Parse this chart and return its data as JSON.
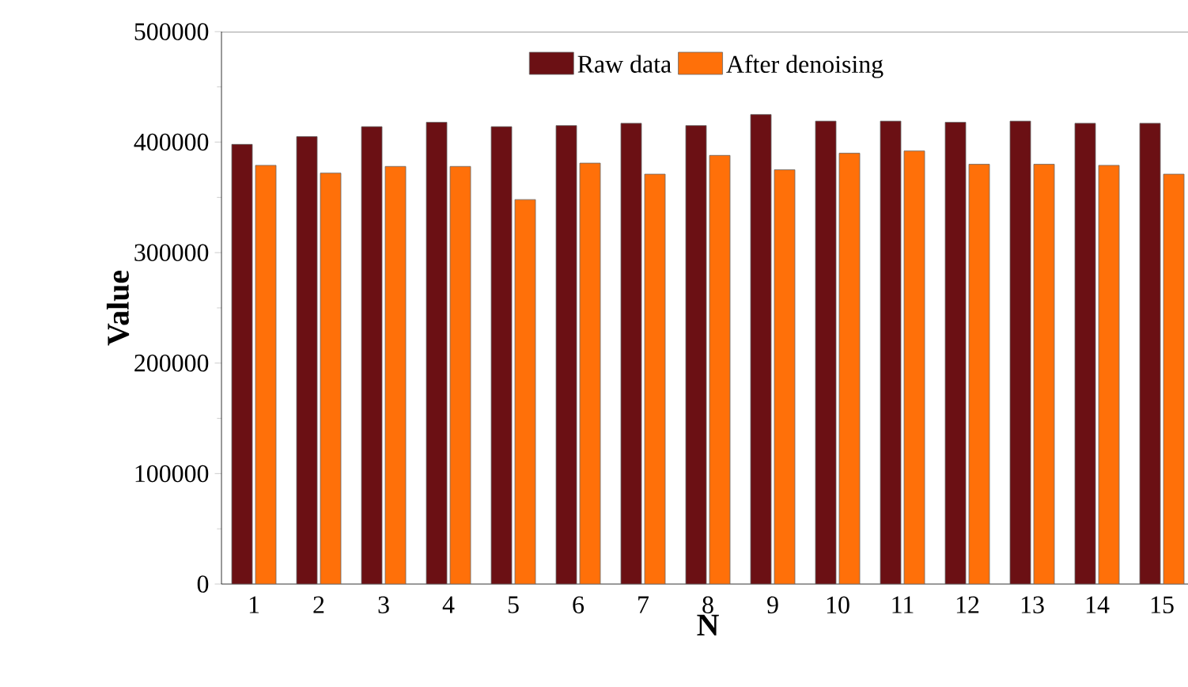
{
  "chart_data": {
    "type": "bar",
    "xlabel": "N",
    "ylabel": "Value",
    "categories": [
      "1",
      "2",
      "3",
      "4",
      "5",
      "6",
      "7",
      "8",
      "9",
      "10",
      "11",
      "12",
      "13",
      "14",
      "15"
    ],
    "series": [
      {
        "name": "Raw data",
        "color": "#6b1014",
        "values": [
          398000,
          405000,
          414000,
          418000,
          414000,
          415000,
          417000,
          415000,
          425000,
          419000,
          419000,
          418000,
          419000,
          417000,
          417000
        ]
      },
      {
        "name": "After denoising",
        "color": "#ff7009",
        "values": [
          379000,
          372000,
          378000,
          378000,
          348000,
          381000,
          371000,
          388000,
          375000,
          390000,
          392000,
          380000,
          380000,
          379000,
          371000
        ]
      }
    ],
    "ylim": [
      0,
      500000
    ],
    "yticks": [
      0,
      100000,
      200000,
      300000,
      400000,
      500000
    ],
    "legend": "top",
    "grid": false
  }
}
